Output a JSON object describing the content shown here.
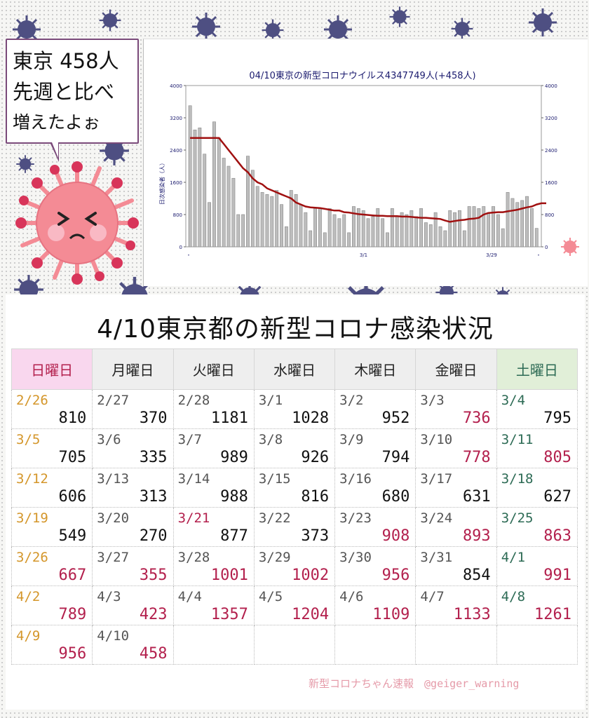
{
  "speech": {
    "line1": "東京 458人",
    "line2": "先週と比べ",
    "line3": "増えたよぉ"
  },
  "chart_data": {
    "type": "bar",
    "title": "04/10東京の新型コロナウイルス4347749人(+458人)",
    "ylabel": "日次感染者（人）",
    "ylim": [
      0,
      4000
    ],
    "yticks": [
      0,
      800,
      1600,
      2400,
      3200,
      4000
    ],
    "x_tick_labels": [
      "・",
      "3/1",
      "3/29",
      "・"
    ],
    "bar_color": "#bdbdbd",
    "line_color": "#a01010",
    "bars": [
      3500,
      2900,
      2950,
      2300,
      1100,
      3100,
      2700,
      2200,
      2000,
      1700,
      800,
      800,
      2250,
      1900,
      1500,
      1350,
      1300,
      1250,
      1400,
      1050,
      500,
      1400,
      1300,
      1050,
      850,
      400,
      950,
      950,
      350,
      950,
      800,
      700,
      800,
      350,
      1000,
      950,
      900,
      700,
      750,
      950,
      700,
      350,
      950,
      750,
      850,
      800,
      900,
      750,
      950,
      600,
      550,
      850,
      500,
      400,
      900,
      850,
      900,
      400,
      1000,
      1000,
      950,
      1000,
      850,
      1000,
      800,
      450,
      1350,
      1200,
      1100,
      1150,
      1250,
      950,
      458
    ],
    "avg_line": [
      2700,
      2700,
      2700,
      2700,
      2700,
      2700,
      2700,
      2550,
      2400,
      2250,
      2100,
      1950,
      1850,
      1700,
      1600,
      1550,
      1450,
      1400,
      1350,
      1300,
      1250,
      1200,
      1100,
      1050,
      1000,
      980,
      970,
      960,
      940,
      920,
      900,
      900,
      860,
      850,
      830,
      810,
      800,
      790,
      780,
      770,
      770,
      760,
      760,
      760,
      750,
      750,
      740,
      730,
      720,
      720,
      710,
      700,
      690,
      650,
      620,
      640,
      660,
      670,
      690,
      700,
      720,
      800,
      840,
      850,
      860,
      860,
      880,
      900,
      920,
      950,
      980,
      1000,
      1050,
      1080,
      1080
    ]
  },
  "main": {
    "title": "4/10東京都の新型コロナ感染状況",
    "weekdays": [
      "日曜日",
      "月曜日",
      "火曜日",
      "水曜日",
      "木曜日",
      "金曜日",
      "土曜日"
    ],
    "weekday_bg": [
      "#f9d7ee",
      "#eeeeee",
      "#eeeeee",
      "#eeeeee",
      "#eeeeee",
      "#eeeeee",
      "#e1efd8"
    ],
    "weeks": [
      [
        {
          "date": "2/26",
          "value": "810",
          "dc": "orange",
          "vc": ""
        },
        {
          "date": "2/27",
          "value": "370",
          "dc": "",
          "vc": ""
        },
        {
          "date": "2/28",
          "value": "1181",
          "dc": "",
          "vc": ""
        },
        {
          "date": "3/1",
          "value": "1028",
          "dc": "",
          "vc": ""
        },
        {
          "date": "3/2",
          "value": "952",
          "dc": "",
          "vc": ""
        },
        {
          "date": "3/3",
          "value": "736",
          "dc": "",
          "vc": "red"
        },
        {
          "date": "3/4",
          "value": "795",
          "dc": "green",
          "vc": ""
        }
      ],
      [
        {
          "date": "3/5",
          "value": "705",
          "dc": "orange",
          "vc": ""
        },
        {
          "date": "3/6",
          "value": "335",
          "dc": "",
          "vc": ""
        },
        {
          "date": "3/7",
          "value": "989",
          "dc": "",
          "vc": ""
        },
        {
          "date": "3/8",
          "value": "926",
          "dc": "",
          "vc": ""
        },
        {
          "date": "3/9",
          "value": "794",
          "dc": "",
          "vc": ""
        },
        {
          "date": "3/10",
          "value": "778",
          "dc": "",
          "vc": "red"
        },
        {
          "date": "3/11",
          "value": "805",
          "dc": "green",
          "vc": "red"
        }
      ],
      [
        {
          "date": "3/12",
          "value": "606",
          "dc": "orange",
          "vc": ""
        },
        {
          "date": "3/13",
          "value": "313",
          "dc": "",
          "vc": ""
        },
        {
          "date": "3/14",
          "value": "988",
          "dc": "",
          "vc": ""
        },
        {
          "date": "3/15",
          "value": "816",
          "dc": "",
          "vc": ""
        },
        {
          "date": "3/16",
          "value": "680",
          "dc": "",
          "vc": ""
        },
        {
          "date": "3/17",
          "value": "631",
          "dc": "",
          "vc": ""
        },
        {
          "date": "3/18",
          "value": "627",
          "dc": "green",
          "vc": ""
        }
      ],
      [
        {
          "date": "3/19",
          "value": "549",
          "dc": "orange",
          "vc": ""
        },
        {
          "date": "3/20",
          "value": "270",
          "dc": "",
          "vc": ""
        },
        {
          "date": "3/21",
          "value": "877",
          "dc": "red",
          "vc": ""
        },
        {
          "date": "3/22",
          "value": "373",
          "dc": "",
          "vc": ""
        },
        {
          "date": "3/23",
          "value": "908",
          "dc": "",
          "vc": "red"
        },
        {
          "date": "3/24",
          "value": "893",
          "dc": "",
          "vc": "red"
        },
        {
          "date": "3/25",
          "value": "863",
          "dc": "green",
          "vc": "red"
        }
      ],
      [
        {
          "date": "3/26",
          "value": "667",
          "dc": "orange",
          "vc": "red"
        },
        {
          "date": "3/27",
          "value": "355",
          "dc": "",
          "vc": "red"
        },
        {
          "date": "3/28",
          "value": "1001",
          "dc": "",
          "vc": "red"
        },
        {
          "date": "3/29",
          "value": "1002",
          "dc": "",
          "vc": "red"
        },
        {
          "date": "3/30",
          "value": "956",
          "dc": "",
          "vc": "red"
        },
        {
          "date": "3/31",
          "value": "854",
          "dc": "",
          "vc": ""
        },
        {
          "date": "4/1",
          "value": "991",
          "dc": "green",
          "vc": "red"
        }
      ],
      [
        {
          "date": "4/2",
          "value": "789",
          "dc": "orange",
          "vc": "red"
        },
        {
          "date": "4/3",
          "value": "423",
          "dc": "",
          "vc": "red"
        },
        {
          "date": "4/4",
          "value": "1357",
          "dc": "",
          "vc": "red"
        },
        {
          "date": "4/5",
          "value": "1204",
          "dc": "",
          "vc": "red"
        },
        {
          "date": "4/6",
          "value": "1109",
          "dc": "",
          "vc": "red"
        },
        {
          "date": "4/7",
          "value": "1133",
          "dc": "",
          "vc": "red"
        },
        {
          "date": "4/8",
          "value": "1261",
          "dc": "green",
          "vc": "red"
        }
      ],
      [
        {
          "date": "4/9",
          "value": "956",
          "dc": "orange",
          "vc": "red"
        },
        {
          "date": "4/10",
          "value": "458",
          "dc": "",
          "vc": "red"
        },
        {
          "date": "",
          "value": "",
          "dc": "",
          "vc": ""
        },
        {
          "date": "",
          "value": "",
          "dc": "",
          "vc": ""
        },
        {
          "date": "",
          "value": "",
          "dc": "",
          "vc": ""
        },
        {
          "date": "",
          "value": "",
          "dc": "",
          "vc": ""
        },
        {
          "date": "",
          "value": "",
          "dc": "",
          "vc": ""
        }
      ]
    ]
  },
  "credit": "新型コロナちゃん速報　@geiger_warning",
  "colors": {
    "virus": "#4e4f82",
    "mascot": "#f48b95",
    "border": "#7a4a7a"
  }
}
